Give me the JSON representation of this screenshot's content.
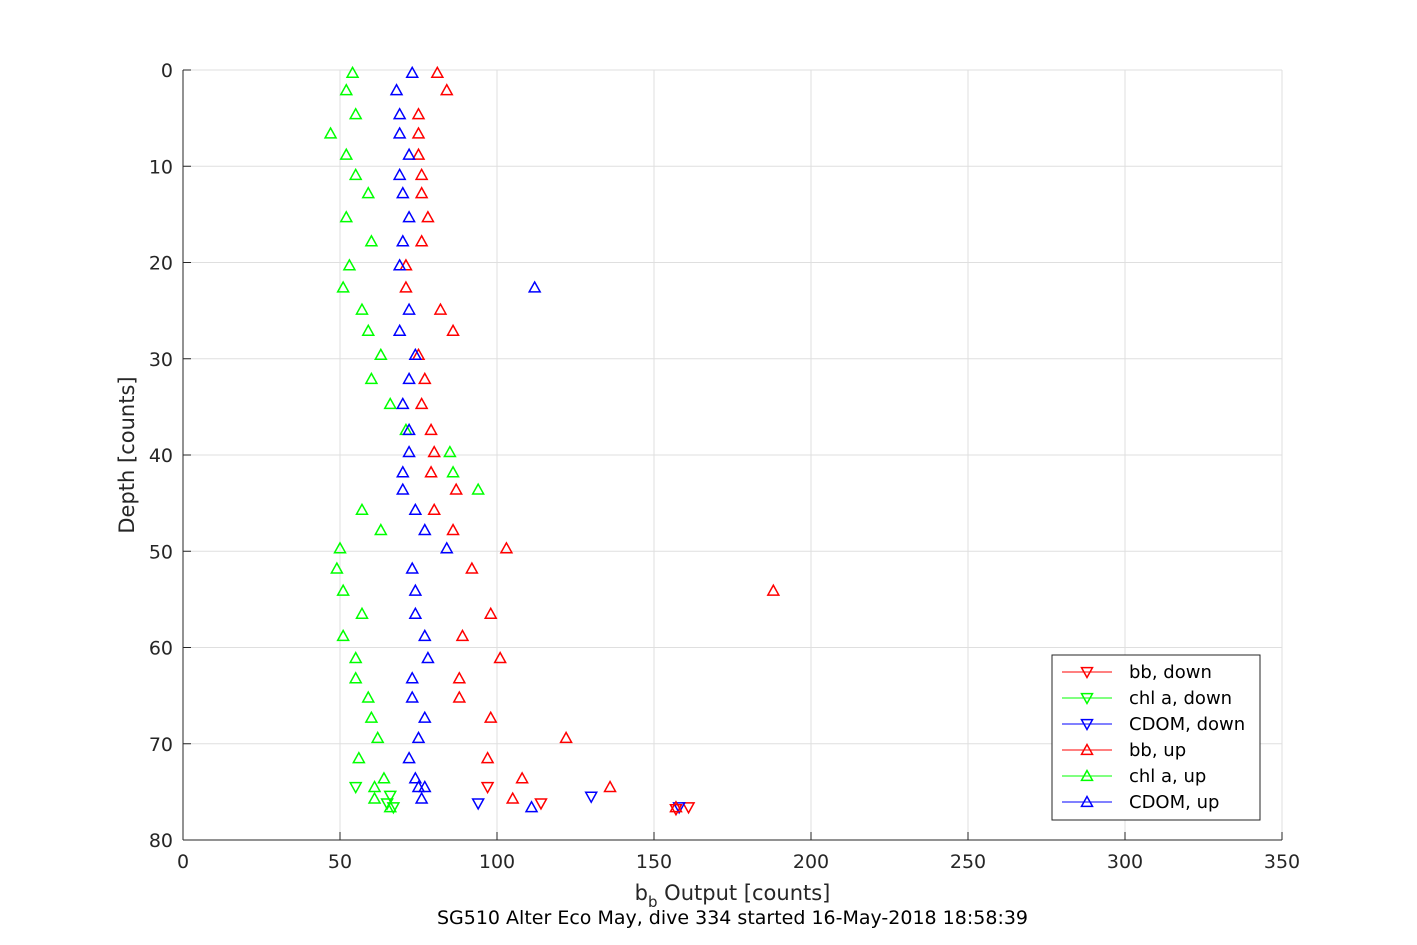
{
  "chart_data": {
    "type": "scatter",
    "xlabel": "b",
    "xlabel_sub": "b",
    "xlabel_rest": " Output [counts]",
    "ylabel": "Depth [counts]",
    "caption": "SG510 Alter Eco May, dive 334 started 16-May-2018 18:58:39",
    "xlim": [
      0,
      350
    ],
    "ylim": [
      0,
      80
    ],
    "y_reversed": true,
    "grid": true,
    "legend_position": "bottom-right",
    "x_ticks": [
      "0",
      "50",
      "100",
      "150",
      "200",
      "250",
      "300",
      "350"
    ],
    "y_ticks": [
      "0",
      "10",
      "20",
      "30",
      "40",
      "50",
      "60",
      "70",
      "80"
    ],
    "series": [
      {
        "name": "bb, down",
        "color": "#ff0000",
        "marker": "triangle-down",
        "points": [
          [
            97,
            74.5
          ],
          [
            114,
            76.2
          ],
          [
            157,
            76.8
          ],
          [
            161,
            76.6
          ]
        ]
      },
      {
        "name": "chl a, down",
        "color": "#00ff00",
        "marker": "triangle-down",
        "points": [
          [
            55,
            74.5
          ],
          [
            66,
            75.4
          ],
          [
            65,
            76.2
          ],
          [
            67,
            76.6
          ]
        ]
      },
      {
        "name": "CDOM, down",
        "color": "#0000ff",
        "marker": "triangle-down",
        "points": [
          [
            130,
            75.5
          ],
          [
            94,
            76.2
          ],
          [
            158,
            76.6
          ]
        ]
      },
      {
        "name": "bb, up",
        "color": "#ff0000",
        "marker": "triangle-up",
        "points": [
          [
            81,
            0.3
          ],
          [
            84,
            2.1
          ],
          [
            75,
            4.6
          ],
          [
            75,
            6.6
          ],
          [
            75,
            8.8
          ],
          [
            76,
            10.9
          ],
          [
            76,
            12.8
          ],
          [
            78,
            15.3
          ],
          [
            76,
            17.8
          ],
          [
            71,
            20.3
          ],
          [
            71,
            22.6
          ],
          [
            82,
            24.9
          ],
          [
            86,
            27.1
          ],
          [
            75,
            29.6
          ],
          [
            77,
            32.1
          ],
          [
            76,
            34.7
          ],
          [
            79,
            37.4
          ],
          [
            80,
            39.7
          ],
          [
            79,
            41.8
          ],
          [
            87,
            43.6
          ],
          [
            80,
            45.7
          ],
          [
            86,
            47.8
          ],
          [
            103,
            49.7
          ],
          [
            92,
            51.8
          ],
          [
            188,
            54.1
          ],
          [
            98,
            56.5
          ],
          [
            89,
            58.8
          ],
          [
            101,
            61.1
          ],
          [
            88,
            63.2
          ],
          [
            88,
            65.2
          ],
          [
            98,
            67.3
          ],
          [
            122,
            69.4
          ],
          [
            97,
            71.5
          ],
          [
            108,
            73.6
          ],
          [
            136,
            74.5
          ],
          [
            105,
            75.7
          ],
          [
            157,
            76.6
          ]
        ]
      },
      {
        "name": "chl a, up",
        "color": "#00ff00",
        "marker": "triangle-up",
        "points": [
          [
            54,
            0.3
          ],
          [
            52,
            2.1
          ],
          [
            55,
            4.6
          ],
          [
            47,
            6.6
          ],
          [
            52,
            8.8
          ],
          [
            55,
            10.9
          ],
          [
            59,
            12.8
          ],
          [
            52,
            15.3
          ],
          [
            60,
            17.8
          ],
          [
            53,
            20.3
          ],
          [
            51,
            22.6
          ],
          [
            57,
            24.9
          ],
          [
            59,
            27.1
          ],
          [
            63,
            29.6
          ],
          [
            60,
            32.1
          ],
          [
            66,
            34.7
          ],
          [
            71,
            37.4
          ],
          [
            85,
            39.7
          ],
          [
            86,
            41.8
          ],
          [
            94,
            43.6
          ],
          [
            57,
            45.7
          ],
          [
            63,
            47.8
          ],
          [
            50,
            49.7
          ],
          [
            49,
            51.8
          ],
          [
            51,
            54.1
          ],
          [
            57,
            56.5
          ],
          [
            51,
            58.8
          ],
          [
            55,
            61.1
          ],
          [
            55,
            63.2
          ],
          [
            59,
            65.2
          ],
          [
            60,
            67.3
          ],
          [
            62,
            69.4
          ],
          [
            56,
            71.5
          ],
          [
            64,
            73.6
          ],
          [
            61,
            74.5
          ],
          [
            61,
            75.7
          ],
          [
            66,
            76.6
          ]
        ]
      },
      {
        "name": "CDOM, up",
        "color": "#0000ff",
        "marker": "triangle-up",
        "points": [
          [
            73,
            0.3
          ],
          [
            68,
            2.1
          ],
          [
            69,
            4.6
          ],
          [
            69,
            6.6
          ],
          [
            72,
            8.8
          ],
          [
            69,
            10.9
          ],
          [
            70,
            12.8
          ],
          [
            72,
            15.3
          ],
          [
            70,
            17.8
          ],
          [
            69,
            20.3
          ],
          [
            112,
            22.6
          ],
          [
            72,
            24.9
          ],
          [
            69,
            27.1
          ],
          [
            74,
            29.6
          ],
          [
            72,
            32.1
          ],
          [
            70,
            34.7
          ],
          [
            72,
            37.4
          ],
          [
            72,
            39.7
          ],
          [
            70,
            41.8
          ],
          [
            70,
            43.6
          ],
          [
            74,
            45.7
          ],
          [
            77,
            47.8
          ],
          [
            84,
            49.7
          ],
          [
            73,
            51.8
          ],
          [
            74,
            54.1
          ],
          [
            74,
            56.5
          ],
          [
            77,
            58.8
          ],
          [
            78,
            61.1
          ],
          [
            73,
            63.2
          ],
          [
            73,
            65.2
          ],
          [
            77,
            67.3
          ],
          [
            75,
            69.4
          ],
          [
            72,
            71.5
          ],
          [
            74,
            73.6
          ],
          [
            75,
            74.5
          ],
          [
            77,
            74.5
          ],
          [
            76,
            75.7
          ],
          [
            111,
            76.6
          ]
        ]
      }
    ]
  }
}
